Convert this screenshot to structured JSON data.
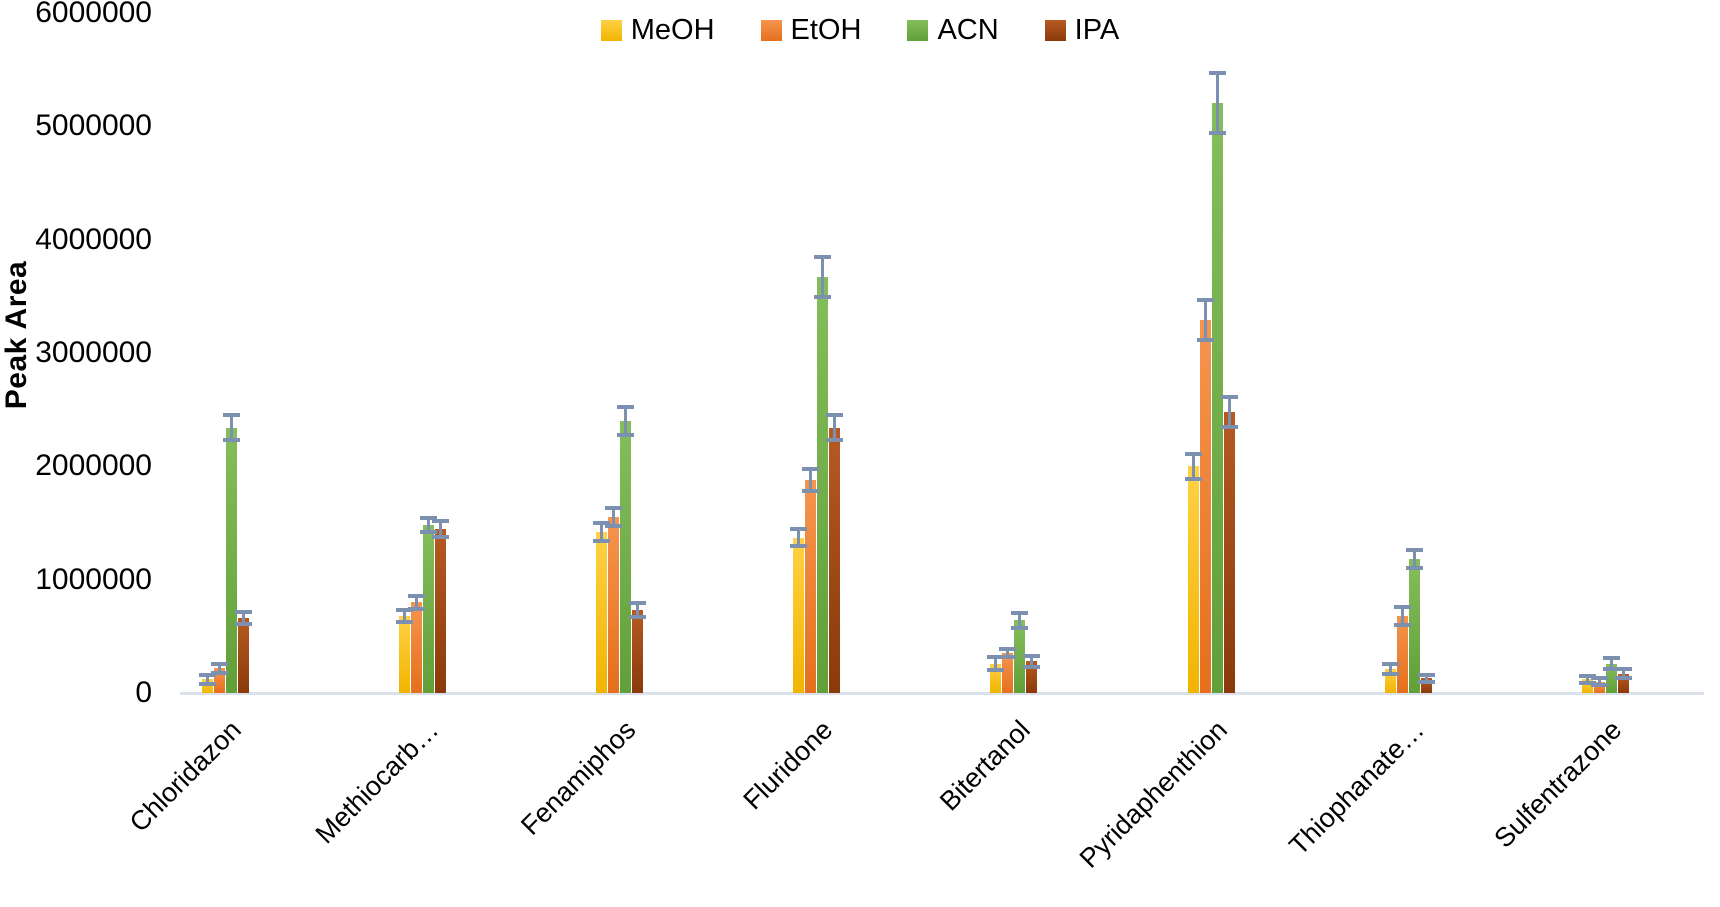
{
  "chart_data": {
    "type": "bar",
    "title": "",
    "xlabel": "",
    "ylabel": "Peak Area",
    "ylim": [
      0,
      6000000
    ],
    "ytick_labels": [
      "0",
      "1000000",
      "2000000",
      "3000000",
      "4000000",
      "5000000",
      "6000000"
    ],
    "grid": false,
    "legend_position": "top-center",
    "error_bar_color": "#7c90b0",
    "axis_line_color": "#dbe1ea",
    "categories": [
      "Chloridazon",
      "Methiocarb…",
      "Fenamiphos",
      "Fluridone",
      "Bitertanol",
      "Pyridaphenthion",
      "Thiophanate…",
      "Sulfentrazone"
    ],
    "series": [
      {
        "name": "MeOH",
        "color": "#FFC000",
        "values": [
          120000,
          680000,
          1420000,
          1370000,
          260000,
          2000000,
          210000,
          120000
        ],
        "errors": [
          40000,
          50000,
          80000,
          75000,
          55000,
          110000,
          45000,
          30000
        ]
      },
      {
        "name": "EtOH",
        "color": "#ED7D31",
        "values": [
          220000,
          800000,
          1550000,
          1880000,
          350000,
          3290000,
          680000,
          100000
        ],
        "errors": [
          40000,
          60000,
          80000,
          100000,
          35000,
          175000,
          80000,
          30000
        ]
      },
      {
        "name": "ACN",
        "color": "#70AD47",
        "values": [
          2340000,
          1480000,
          2400000,
          3670000,
          640000,
          5210000,
          1180000,
          260000
        ],
        "errors": [
          110000,
          60000,
          125000,
          180000,
          65000,
          265000,
          80000,
          45000
        ]
      },
      {
        "name": "IPA",
        "color": "#A0430E",
        "values": [
          660000,
          1450000,
          730000,
          2340000,
          280000,
          2480000,
          130000,
          170000
        ],
        "errors": [
          55000,
          70000,
          60000,
          110000,
          50000,
          135000,
          30000,
          40000
        ]
      }
    ]
  }
}
